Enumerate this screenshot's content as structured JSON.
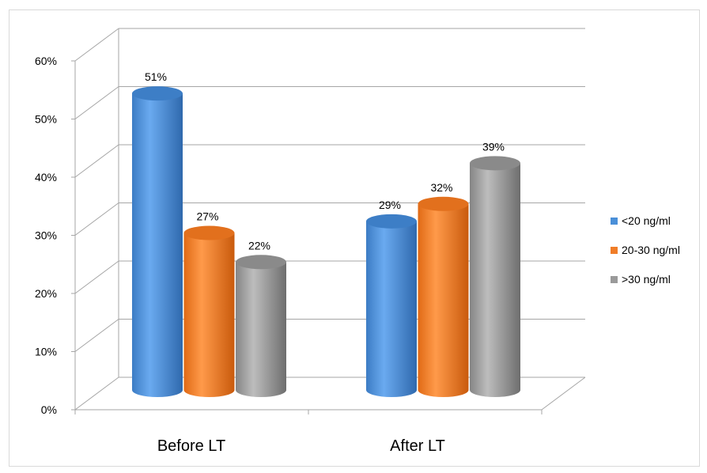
{
  "chart_data": {
    "type": "bar",
    "categories": [
      "Before LT",
      "After LT"
    ],
    "series": [
      {
        "name": "<20 ng/ml",
        "values": [
          51,
          29
        ],
        "color": "#4a8fd8"
      },
      {
        "name": "20-30 ng/ml",
        "values": [
          27,
          32
        ],
        "color": "#f07d28"
      },
      {
        "name": ">30 ng/ml",
        "values": [
          22,
          39
        ],
        "color": "#9a9a9a"
      }
    ],
    "data_labels": [
      [
        "51%",
        "29%"
      ],
      [
        "27%",
        "32%"
      ],
      [
        "22%",
        "39%"
      ]
    ],
    "yticks": [
      "0%",
      "10%",
      "20%",
      "30%",
      "40%",
      "50%",
      "60%"
    ],
    "ylim": [
      0,
      60
    ],
    "grid": true,
    "style": "3d-cylinder",
    "legend_position": "right"
  }
}
